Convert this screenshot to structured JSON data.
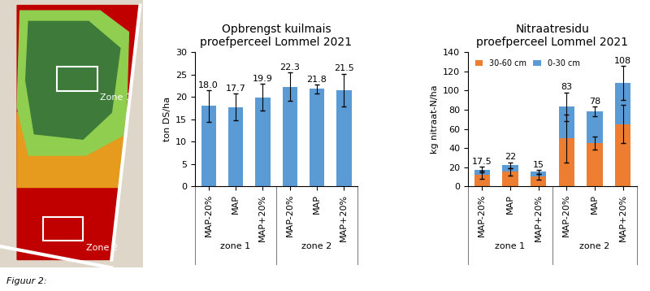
{
  "map": {
    "labels": [
      "Zone 1",
      "Zone 2"
    ]
  },
  "caption": "Figuur 2:",
  "chart_data": [
    {
      "type": "bar",
      "title": "Opbrengst kuilmais\nproefperceel Lommel 2021",
      "y_label": "ton DS/ha",
      "categories": [
        "MAP-20%",
        "MAP",
        "MAP+20%",
        "MAP-20%",
        "MAP",
        "MAP+20%"
      ],
      "groups": [
        "zone 1",
        "zone 2"
      ],
      "values": [
        18.0,
        17.7,
        19.9,
        22.3,
        21.8,
        21.5
      ],
      "value_labels": [
        "18.0",
        "17.7",
        "19.9",
        "22.3",
        "21.8",
        "21.5"
      ],
      "errors": [
        3.5,
        3.0,
        3.0,
        3.2,
        1.0,
        3.7
      ],
      "color": "#5b9bd5",
      "data_labels": true,
      "grid": false,
      "ylim": [
        0,
        30
      ],
      "yticks": [
        0,
        5,
        10,
        15,
        20,
        25,
        30
      ]
    },
    {
      "type": "bar",
      "title": "Nitraatresidu\nproefperceel Lommel 2021",
      "y_label": "kg nitraat-N/ha",
      "categories": [
        "MAP-20%",
        "MAP",
        "MAP+20%",
        "MAP-20%",
        "MAP",
        "MAP+20%"
      ],
      "groups": [
        "zone 1",
        "zone 2"
      ],
      "stacked": true,
      "series": [
        {
          "name": "30-60 cm",
          "color": "#ed7d31",
          "values": [
            12,
            15,
            10,
            50,
            45,
            65
          ],
          "errors": [
            4,
            4,
            3,
            25,
            7,
            20
          ]
        },
        {
          "name": "0-30 cm",
          "color": "#5b9bd5",
          "values": [
            5.5,
            7,
            5,
            33,
            33,
            43
          ],
          "errors": [
            3,
            3,
            2,
            15,
            5,
            18
          ]
        }
      ],
      "totals": [
        17.5,
        22,
        15,
        83,
        78,
        108
      ],
      "data_labels": true,
      "legend": "upper left",
      "grid": false,
      "ylim": [
        0,
        140
      ],
      "yticks": [
        0,
        20,
        40,
        60,
        80,
        100,
        120,
        140
      ]
    }
  ]
}
